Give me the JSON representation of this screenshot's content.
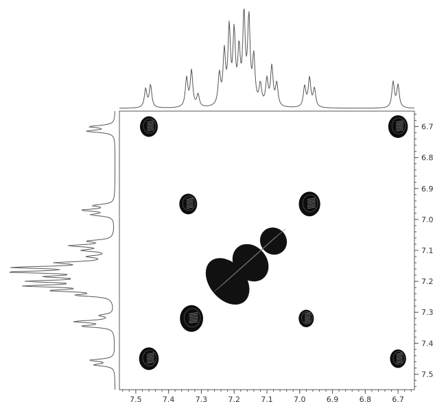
{
  "chart_data": {
    "type": "contour",
    "x_axis": {
      "reversed": true,
      "range": [
        7.55,
        6.65
      ],
      "tick_values": [
        7.5,
        7.4,
        7.3,
        7.2,
        7.1,
        7.0,
        6.9,
        6.8,
        6.7
      ],
      "tick_labels": [
        "7.5",
        "7.4",
        "7.3",
        "7.2",
        "7.1",
        "7.0",
        "6.9",
        "6.8",
        "6.7"
      ]
    },
    "y_axis": {
      "range": [
        6.65,
        7.55
      ],
      "tick_values": [
        6.7,
        6.8,
        6.9,
        7.0,
        7.1,
        7.2,
        7.3,
        7.4,
        7.5
      ],
      "tick_labels": [
        "6.7",
        "6.8",
        "6.9",
        "7.0",
        "7.1",
        "7.2",
        "7.3",
        "7.4",
        "7.5"
      ]
    },
    "peaks_1d": [
      {
        "shift": 7.47,
        "height": 0.18
      },
      {
        "shift": 7.455,
        "height": 0.22
      },
      {
        "shift": 7.345,
        "height": 0.28
      },
      {
        "shift": 7.33,
        "height": 0.35
      },
      {
        "shift": 7.31,
        "height": 0.12
      },
      {
        "shift": 7.245,
        "height": 0.3
      },
      {
        "shift": 7.23,
        "height": 0.5
      },
      {
        "shift": 7.215,
        "height": 0.72
      },
      {
        "shift": 7.2,
        "height": 0.68
      },
      {
        "shift": 7.185,
        "height": 0.5
      },
      {
        "shift": 7.17,
        "height": 0.85
      },
      {
        "shift": 7.155,
        "height": 0.82
      },
      {
        "shift": 7.14,
        "height": 0.45
      },
      {
        "shift": 7.12,
        "height": 0.2
      },
      {
        "shift": 7.1,
        "height": 0.25
      },
      {
        "shift": 7.085,
        "height": 0.38
      },
      {
        "shift": 7.07,
        "height": 0.22
      },
      {
        "shift": 6.985,
        "height": 0.2
      },
      {
        "shift": 6.97,
        "height": 0.28
      },
      {
        "shift": 6.955,
        "height": 0.18
      },
      {
        "shift": 6.715,
        "height": 0.25
      },
      {
        "shift": 6.7,
        "height": 0.22
      }
    ],
    "cross_peaks": [
      {
        "x": 7.46,
        "y": 6.7,
        "size": 1.0
      },
      {
        "x": 6.7,
        "y": 6.7,
        "size": 1.1
      },
      {
        "x": 7.34,
        "y": 6.95,
        "size": 1.0
      },
      {
        "x": 6.97,
        "y": 6.95,
        "size": 1.2
      },
      {
        "x": 7.33,
        "y": 7.32,
        "size": 1.3
      },
      {
        "x": 6.98,
        "y": 7.32,
        "size": 0.85
      },
      {
        "x": 7.46,
        "y": 7.45,
        "size": 1.1
      },
      {
        "x": 6.7,
        "y": 7.45,
        "size": 0.9
      }
    ],
    "diagonal_cluster": [
      {
        "x": 7.22,
        "y": 7.2,
        "rx": 0.055,
        "ry": 0.085
      },
      {
        "x": 7.15,
        "y": 7.14,
        "rx": 0.05,
        "ry": 0.065
      },
      {
        "x": 7.08,
        "y": 7.07,
        "rx": 0.04,
        "ry": 0.045
      }
    ]
  }
}
